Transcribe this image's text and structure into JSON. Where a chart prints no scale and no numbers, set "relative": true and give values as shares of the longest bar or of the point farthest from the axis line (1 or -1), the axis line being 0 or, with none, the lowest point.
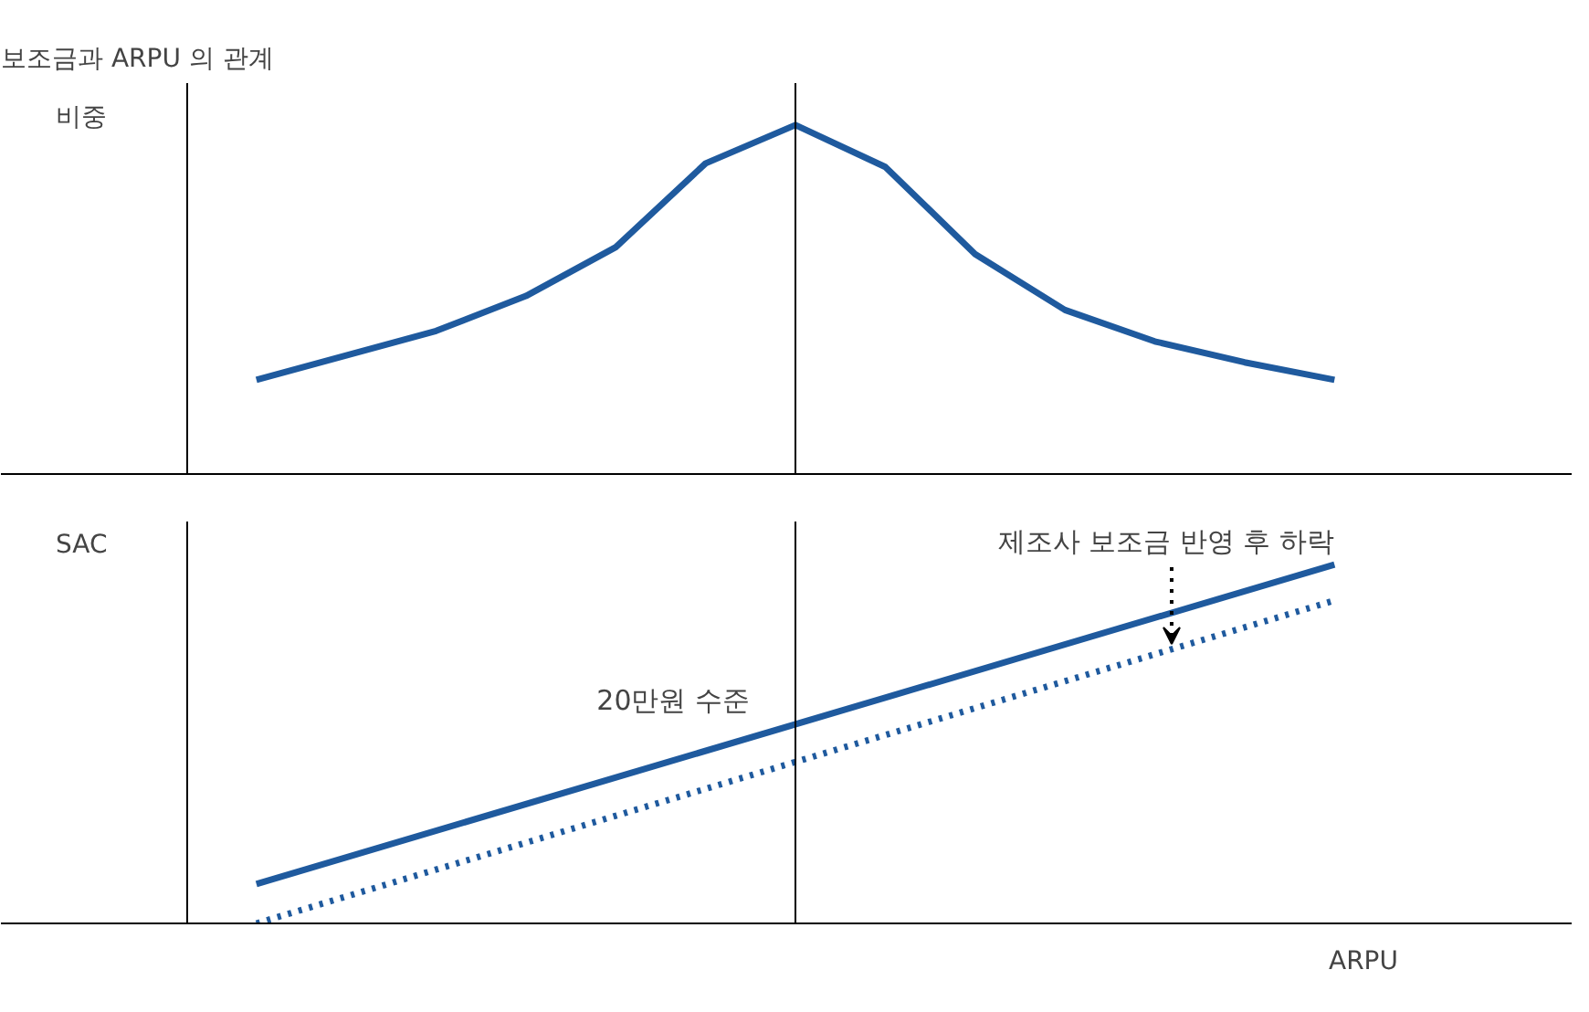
{
  "chart_data": [
    {
      "type": "line",
      "title": "보조금과 ARPU 의 관계",
      "ylabel": "비중",
      "relative": true,
      "grid": false,
      "marker": "none",
      "categories": [
        null,
        null,
        null,
        null,
        null,
        null,
        null,
        null,
        null,
        null,
        null,
        null,
        null
      ],
      "series": [
        {
          "color": "#1f5a9e",
          "line_style": "solid",
          "values": [
            0.27,
            0.34,
            0.41,
            0.51,
            0.65,
            0.89,
            1,
            0.88,
            0.63,
            0.47,
            0.38,
            0.32,
            0.27
          ]
        }
      ]
    },
    {
      "type": "line",
      "ylabel": "SAC",
      "xlabel": "ARPU",
      "relative": true,
      "grid": false,
      "marker": "none",
      "categories": [
        null,
        null
      ],
      "series": [
        {
          "color": "#1f5a9e",
          "line_style": "solid",
          "values": [
            0.11,
            1
          ]
        },
        {
          "color": "#1f5a9e",
          "line_style": "dotted",
          "values": [
            0,
            0.9
          ]
        }
      ],
      "annotations": [
        "20만원 수준",
        "제조사 보조금 반영 후 하락"
      ]
    }
  ]
}
